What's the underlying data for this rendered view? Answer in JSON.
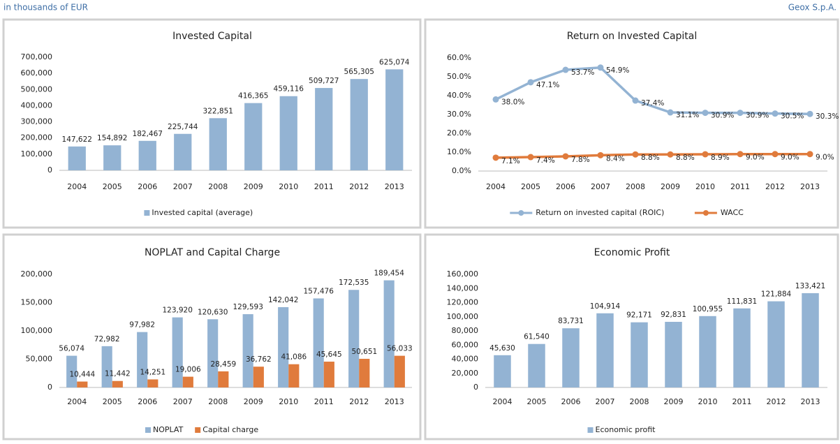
{
  "header": {
    "left": "in thousands of EUR",
    "right": "Geox S.p.A."
  },
  "chart_data": [
    {
      "type": "bar",
      "title": "Invested Capital",
      "categories": [
        "2004",
        "2005",
        "2006",
        "2007",
        "2008",
        "2009",
        "2010",
        "2011",
        "2012",
        "2013"
      ],
      "series": [
        {
          "name": "Invested capital (average)",
          "color": "#93b3d3",
          "values": [
            147622,
            154892,
            182467,
            225744,
            322851,
            416365,
            459116,
            509727,
            565305,
            625074
          ],
          "value_labels": [
            "147,622",
            "154,892",
            "182,467",
            "225,744",
            "322,851",
            "416,365",
            "459,116",
            "509,727",
            "565,305",
            "625,074"
          ]
        }
      ],
      "ylim": [
        0,
        700000
      ],
      "yticks": [
        0,
        {
          "value": 100000,
          "label": "100,000"
        },
        {
          "value": 200000,
          "label": "200,000"
        },
        {
          "value": 300000,
          "label": "300,000"
        },
        {
          "value": 400000,
          "label": "400,000"
        },
        {
          "value": 500000,
          "label": "500,000"
        },
        {
          "value": 600000,
          "label": "600,000"
        },
        {
          "value": 700000,
          "label": "700,000"
        }
      ],
      "grid": false,
      "legend": "bottom"
    },
    {
      "type": "line",
      "title": "Return on Invested Capital",
      "categories": [
        "2004",
        "2005",
        "2006",
        "2007",
        "2008",
        "2009",
        "2010",
        "2011",
        "2012",
        "2013"
      ],
      "series": [
        {
          "name": "Return on invested capital (ROIC)",
          "color": "#93b3d3",
          "values": [
            38.0,
            47.1,
            53.7,
            54.9,
            37.4,
            31.1,
            30.9,
            30.9,
            30.5,
            30.3
          ],
          "value_labels": [
            "38.0%",
            "47.1%",
            "53.7%",
            "54.9%",
            "37.4%",
            "31.1%",
            "30.9%",
            "30.9%",
            "30.5%",
            "30.3%"
          ]
        },
        {
          "name": "WACC",
          "color": "#e07b3c",
          "values": [
            7.1,
            7.4,
            7.8,
            8.4,
            8.8,
            8.8,
            8.9,
            9.0,
            9.0,
            9.0
          ],
          "value_labels": [
            "7.1%",
            "7.4%",
            "7.8%",
            "8.4%",
            "8.8%",
            "8.8%",
            "8.9%",
            "9.0%",
            "9.0%",
            "9.0%"
          ]
        }
      ],
      "ylim": [
        0,
        60
      ],
      "yticks": [
        {
          "value": 0,
          "label": "0.0%"
        },
        {
          "value": 10,
          "label": "10.0%"
        },
        {
          "value": 20,
          "label": "20.0%"
        },
        {
          "value": 30,
          "label": "30.0%"
        },
        {
          "value": 40,
          "label": "40.0%"
        },
        {
          "value": 50,
          "label": "50.0%"
        },
        {
          "value": 60,
          "label": "60.0%"
        }
      ],
      "grid": false,
      "legend": "bottom"
    },
    {
      "type": "bar",
      "title": "NOPLAT and Capital Charge",
      "categories": [
        "2004",
        "2005",
        "2006",
        "2007",
        "2008",
        "2009",
        "2010",
        "2011",
        "2012",
        "2013"
      ],
      "series": [
        {
          "name": "NOPLAT",
          "color": "#93b3d3",
          "values": [
            56074,
            72982,
            97982,
            123920,
            120630,
            129593,
            142042,
            157476,
            172535,
            189454
          ],
          "value_labels": [
            "56,074",
            "72,982",
            "97,982",
            "123,920",
            "120,630",
            "129,593",
            "142,042",
            "157,476",
            "172,535",
            "189,454"
          ]
        },
        {
          "name": "Capital charge",
          "color": "#e07b3c",
          "values": [
            10444,
            11442,
            14251,
            19006,
            28459,
            36762,
            41086,
            45645,
            50651,
            56033
          ],
          "value_labels": [
            "10,444",
            "11,442",
            "14,251",
            "19,006",
            "28,459",
            "36,762",
            "41,086",
            "45,645",
            "50,651",
            "56,033"
          ]
        }
      ],
      "ylim": [
        0,
        200000
      ],
      "yticks": [
        0,
        {
          "value": 50000,
          "label": "50,000"
        },
        {
          "value": 100000,
          "label": "100,000"
        },
        {
          "value": 150000,
          "label": "150,000"
        },
        {
          "value": 200000,
          "label": "200,000"
        }
      ],
      "grid": false,
      "legend": "bottom"
    },
    {
      "type": "bar",
      "title": "Economic Profit",
      "categories": [
        "2004",
        "2005",
        "2006",
        "2007",
        "2008",
        "2009",
        "2010",
        "2011",
        "2012",
        "2013"
      ],
      "series": [
        {
          "name": "Economic profit",
          "color": "#93b3d3",
          "values": [
            45630,
            61540,
            83731,
            104914,
            92171,
            92831,
            100955,
            111831,
            121884,
            133421
          ],
          "value_labels": [
            "45,630",
            "61,540",
            "83,731",
            "104,914",
            "92,171",
            "92,831",
            "100,955",
            "111,831",
            "121,884",
            "133,421"
          ]
        }
      ],
      "ylim": [
        0,
        160000
      ],
      "yticks": [
        0,
        {
          "value": 20000,
          "label": "20,000"
        },
        {
          "value": 40000,
          "label": "40,000"
        },
        {
          "value": 60000,
          "label": "60,000"
        },
        {
          "value": 80000,
          "label": "80,000"
        },
        {
          "value": 100000,
          "label": "100,000"
        },
        {
          "value": 120000,
          "label": "120,000"
        },
        {
          "value": 140000,
          "label": "140,000"
        },
        {
          "value": 160000,
          "label": "160,000"
        }
      ],
      "grid": false,
      "legend": "bottom"
    }
  ]
}
